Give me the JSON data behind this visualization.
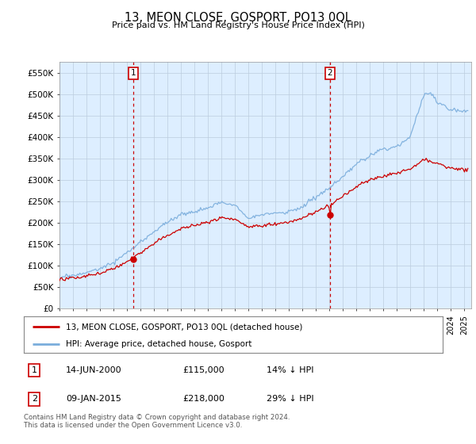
{
  "title": "13, MEON CLOSE, GOSPORT, PO13 0QL",
  "subtitle": "Price paid vs. HM Land Registry's House Price Index (HPI)",
  "legend_line1": "13, MEON CLOSE, GOSPORT, PO13 0QL (detached house)",
  "legend_line2": "HPI: Average price, detached house, Gosport",
  "transaction1_date": "14-JUN-2000",
  "transaction1_price": "£115,000",
  "transaction1_hpi": "14% ↓ HPI",
  "transaction1_year": 2000.45,
  "transaction1_value": 115000,
  "transaction2_date": "09-JAN-2015",
  "transaction2_price": "£218,000",
  "transaction2_hpi": "29% ↓ HPI",
  "transaction2_year": 2015.03,
  "transaction2_value": 218000,
  "footer": "Contains HM Land Registry data © Crown copyright and database right 2024.\nThis data is licensed under the Open Government Licence v3.0.",
  "ylim_max": 575000,
  "xlim_start": 1995.0,
  "xlim_end": 2025.5,
  "price_line_color": "#cc0000",
  "hpi_line_color": "#7aaddc",
  "background_color": "#ddeeff",
  "plot_bg_color": "#ffffff",
  "grid_color": "#bbccdd",
  "vline_color": "#cc0000",
  "box_color": "#cc0000",
  "yticks": [
    0,
    50000,
    100000,
    150000,
    200000,
    250000,
    300000,
    350000,
    400000,
    450000,
    500000,
    550000
  ]
}
